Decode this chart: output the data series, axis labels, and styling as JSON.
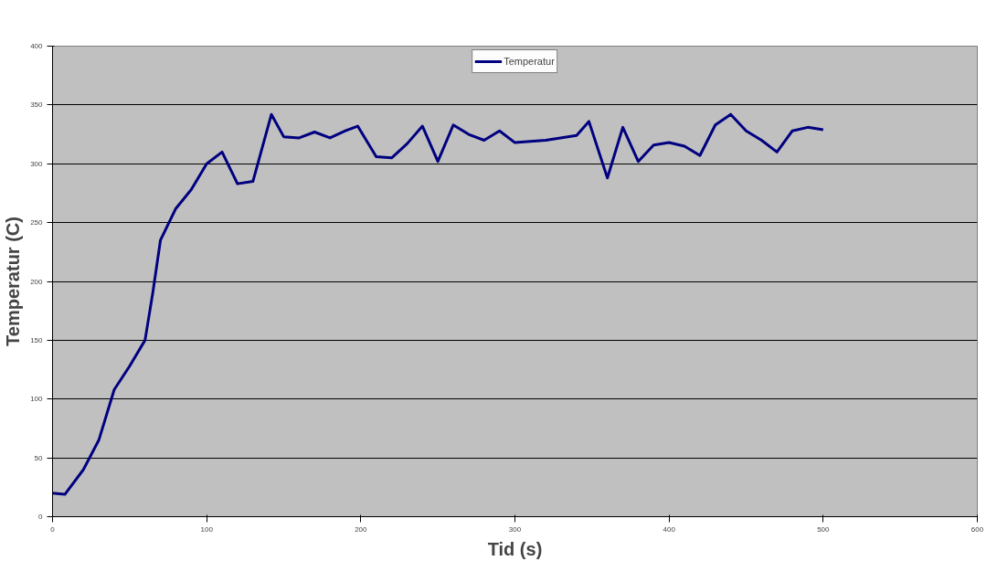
{
  "chart_data": {
    "type": "line",
    "xlabel": "Tid (s)",
    "ylabel": "Temperatur (C)",
    "x": [
      0,
      8,
      20,
      30,
      40,
      50,
      60,
      65,
      70,
      80,
      90,
      100,
      110,
      120,
      130,
      142,
      150,
      160,
      170,
      180,
      190,
      198,
      210,
      220,
      230,
      240,
      250,
      260,
      270,
      280,
      290,
      300,
      320,
      340,
      348,
      360,
      370,
      380,
      390,
      400,
      410,
      420,
      430,
      440,
      450,
      460,
      470,
      480,
      490,
      500
    ],
    "series": [
      {
        "name": "Temperatur",
        "color": "#000080",
        "values": [
          20,
          19,
          40,
          65,
          108,
          128,
          150,
          190,
          235,
          262,
          278,
          300,
          310,
          283,
          285,
          342,
          323,
          322,
          327,
          322,
          328,
          332,
          306,
          305,
          317,
          332,
          302,
          333,
          325,
          320,
          328,
          318,
          320,
          324,
          336,
          288,
          331,
          302,
          316,
          318,
          315,
          307,
          333,
          342,
          328,
          320,
          310,
          328,
          331,
          329
        ]
      }
    ],
    "xlim": [
      0,
      600
    ],
    "xticks": [
      0,
      100,
      200,
      300,
      400,
      500,
      600
    ],
    "ylim": [
      0,
      400
    ],
    "yticks": [
      0,
      50,
      100,
      150,
      200,
      250,
      300,
      350,
      400
    ],
    "grid": "y",
    "legend": "top",
    "marker": "none",
    "line_style": "solid"
  }
}
